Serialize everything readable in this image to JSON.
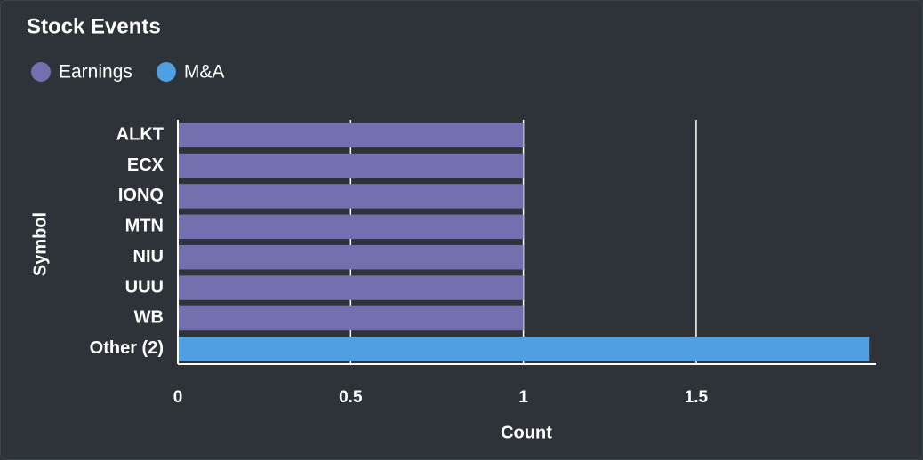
{
  "chart_data": {
    "type": "bar",
    "orientation": "horizontal",
    "stacked": true,
    "title": "Stock Events",
    "categories": [
      "ALKT",
      "ECX",
      "IONQ",
      "MTN",
      "NIU",
      "UUU",
      "WB",
      "Other (2)"
    ],
    "series": [
      {
        "name": "Earnings",
        "color": "#7470b0",
        "values": [
          1,
          1,
          1,
          1,
          1,
          1,
          1,
          null
        ]
      },
      {
        "name": "M&A",
        "color": "#4f9fe3",
        "values": [
          null,
          null,
          null,
          null,
          null,
          null,
          null,
          2
        ]
      }
    ],
    "xlim": [
      0,
      2.02
    ],
    "xticks": [
      0,
      0.5,
      1,
      1.5
    ],
    "grid": true,
    "xlabel": "Count",
    "ylabel": "Symbol",
    "legend": "top-left"
  }
}
